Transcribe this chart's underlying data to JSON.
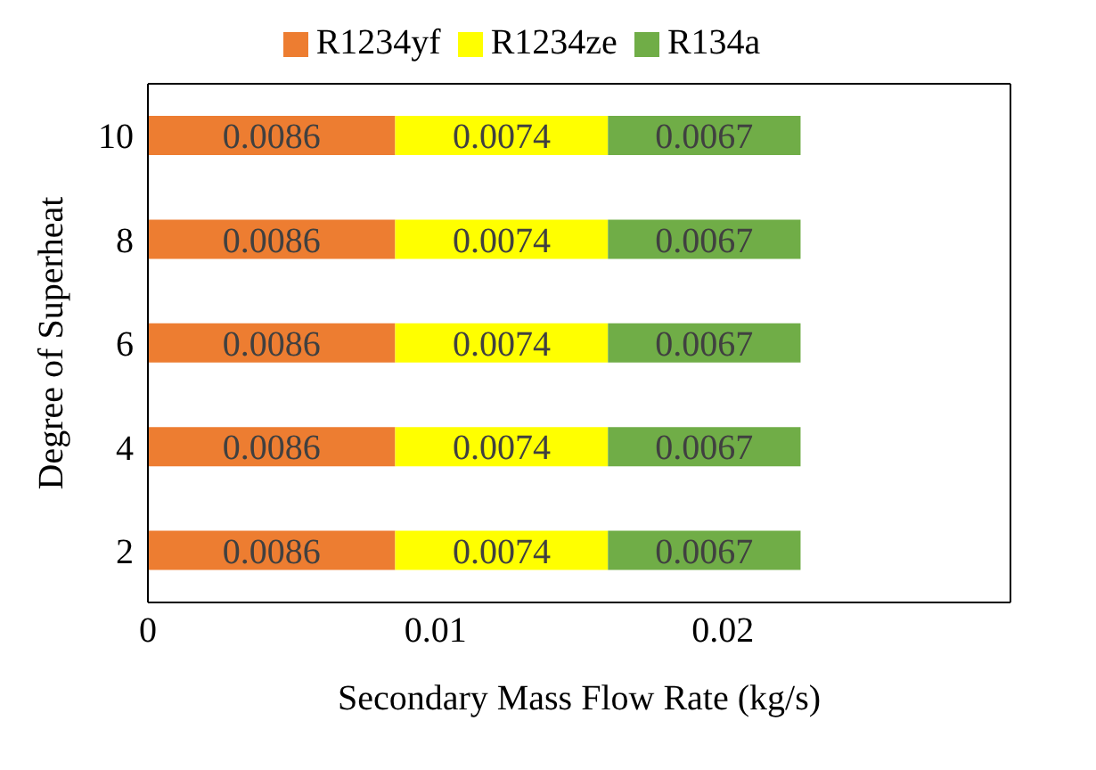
{
  "chart_data": {
    "type": "bar",
    "orientation": "horizontal",
    "stacked": true,
    "categories": [
      "10",
      "8",
      "6",
      "4",
      "2"
    ],
    "series": [
      {
        "name": "R1234yf",
        "color": "#ed7d31",
        "values": [
          0.0086,
          0.0086,
          0.0086,
          0.0086,
          0.0086
        ]
      },
      {
        "name": "R1234ze",
        "color": "#ffff00",
        "values": [
          0.0074,
          0.0074,
          0.0074,
          0.0074,
          0.0074
        ]
      },
      {
        "name": "R134a",
        "color": "#70ad47",
        "values": [
          0.0067,
          0.0067,
          0.0067,
          0.0067,
          0.0067
        ]
      }
    ],
    "xlim": [
      0,
      0.03
    ],
    "xticks": [
      0,
      0.01,
      0.02
    ],
    "xlabel": "Secondary Mass Flow Rate (kg/s)",
    "ylabel": "Degree of Superheat",
    "data_labels": true,
    "legend": "top",
    "grid": false
  }
}
